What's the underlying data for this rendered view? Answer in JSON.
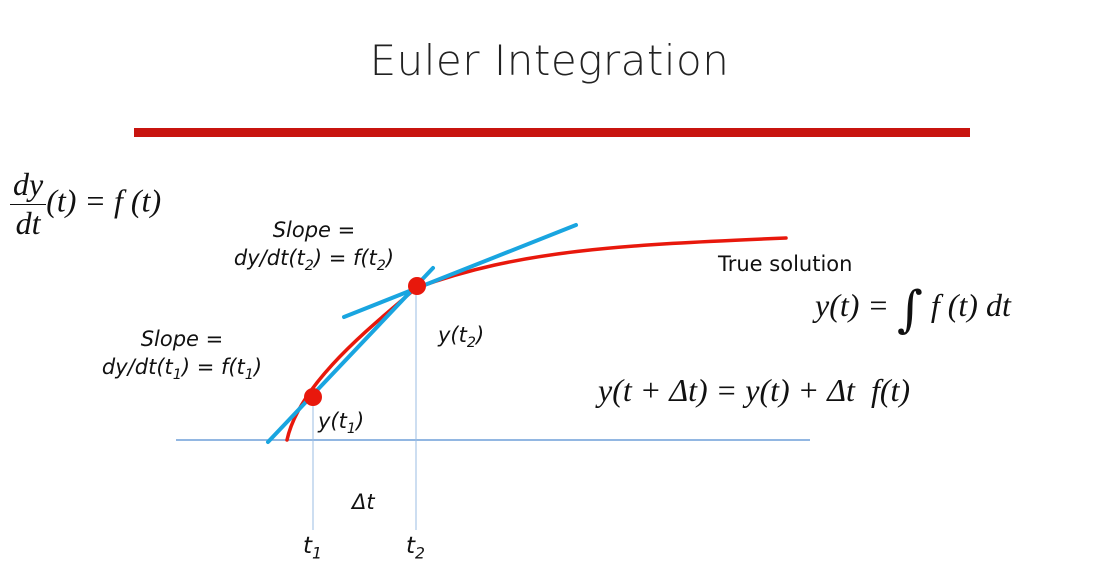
{
  "title": "Euler Integration",
  "ode": {
    "lhs_numerator": "dy",
    "lhs_denominator": "dt",
    "rhs": "(t) = f (t)"
  },
  "slope_label_2": {
    "line1": "Slope =",
    "line2_prefix": "dy/dt(t",
    "line2_sub": "2",
    "line2_mid": ") = f(t",
    "line2_sub2": "2",
    "line2_suffix": ")"
  },
  "slope_label_1": {
    "line1": "Slope =",
    "line2_prefix": "dy/dt(t",
    "line2_sub": "1",
    "line2_mid": ") = f(t",
    "line2_sub2": "1",
    "line2_suffix": ")"
  },
  "true_solution_label": "True solution",
  "integral_formula": {
    "lhs": "y(t) =",
    "integral": "∫",
    "rhs": "f (t) dt"
  },
  "euler_formula": "y(t + Δt) = y(t) + Δt  f(t)",
  "point_labels": {
    "y_t1": {
      "prefix": "y(t",
      "sub": "1",
      "suffix": ")"
    },
    "y_t2": {
      "prefix": "y(t",
      "sub": "2",
      "suffix": ")"
    }
  },
  "axis_labels": {
    "t1": {
      "base": "t",
      "sub": "1"
    },
    "t2": {
      "base": "t",
      "sub": "2"
    },
    "delta_t": "Δt"
  },
  "colors": {
    "curve": "#e8180c",
    "tangent": "#19a5e0",
    "axis": "#6f9fd8",
    "points": "#e8180c",
    "title_rule": "#c8140f"
  }
}
